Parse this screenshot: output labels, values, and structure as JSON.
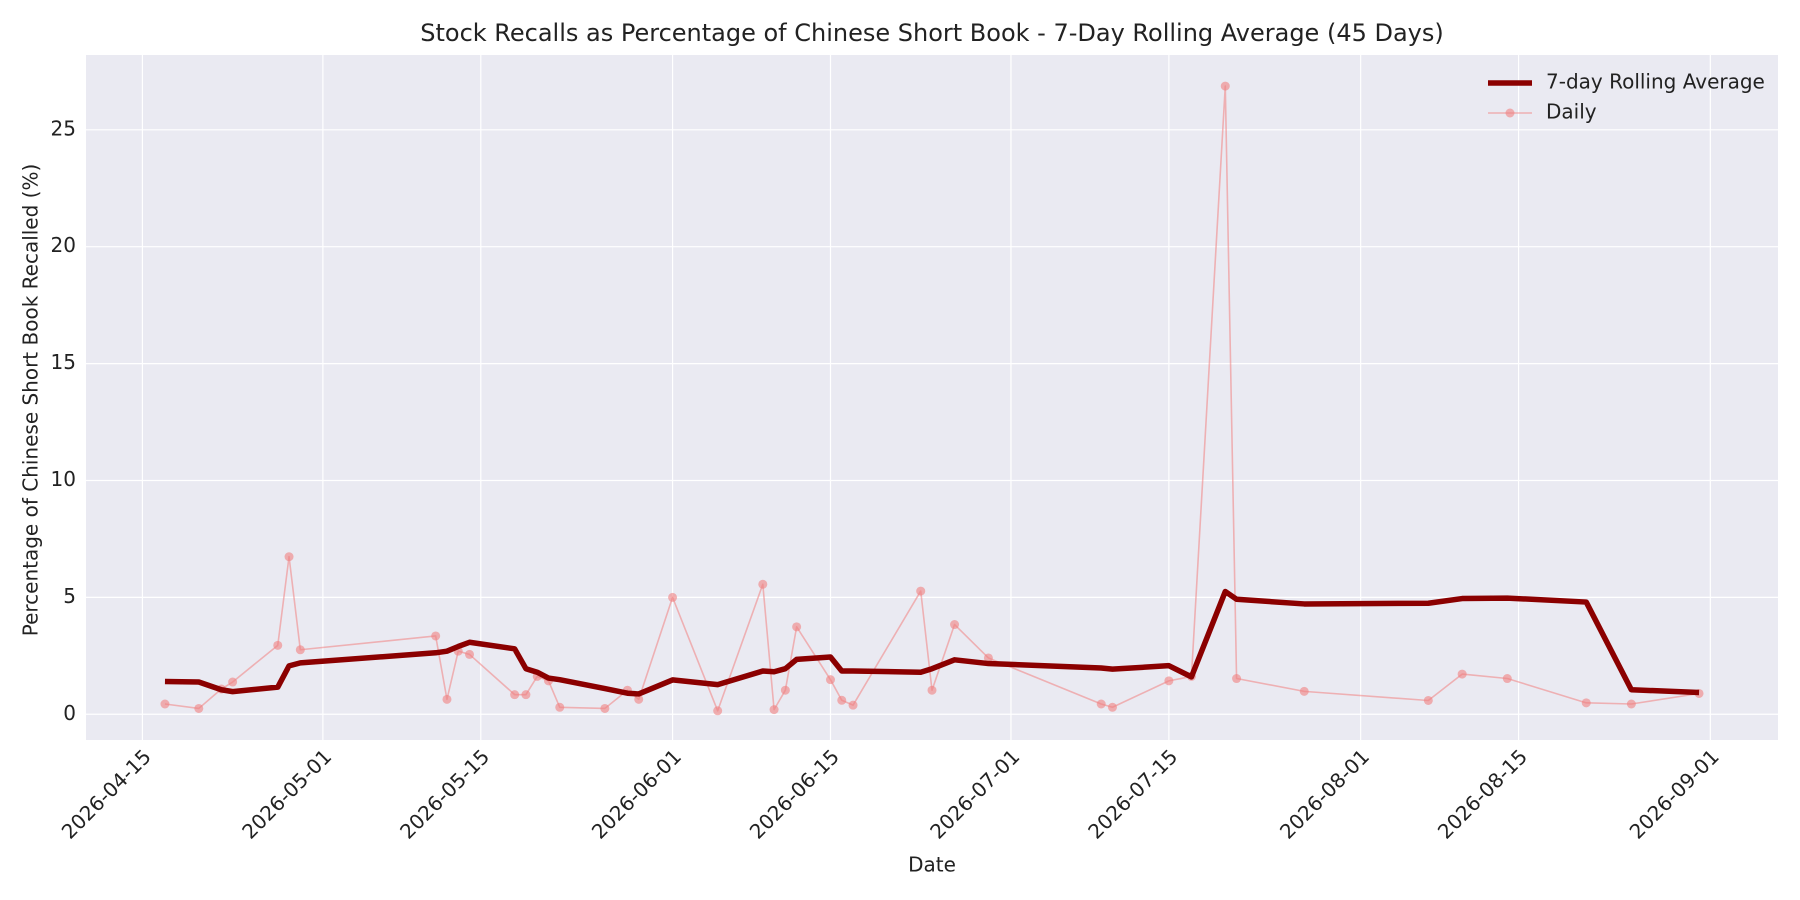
{
  "chart_data": {
    "type": "line",
    "title": "Stock Recalls as Percentage of Chinese Short Book - 7-Day Rolling Average (45 Days)",
    "x_label": "Date",
    "y_label": "Percentage of Chinese Short Book Recalled (%)",
    "x": [
      "2026-04-17",
      "2026-04-20",
      "2026-04-22",
      "2026-04-23",
      "2026-04-27",
      "2026-04-28",
      "2026-04-29",
      "2026-05-11",
      "2026-05-12",
      "2026-05-13",
      "2026-05-14",
      "2026-05-18",
      "2026-05-19",
      "2026-05-20",
      "2026-05-21",
      "2026-05-22",
      "2026-05-26",
      "2026-05-28",
      "2026-05-29",
      "2026-06-01",
      "2026-06-05",
      "2026-06-09",
      "2026-06-10",
      "2026-06-11",
      "2026-06-12",
      "2026-06-15",
      "2026-06-16",
      "2026-06-17",
      "2026-06-23",
      "2026-06-24",
      "2026-06-26",
      "2026-06-29",
      "2026-07-09",
      "2026-07-10",
      "2026-07-15",
      "2026-07-17",
      "2026-07-20",
      "2026-07-21",
      "2026-07-27",
      "2026-08-07",
      "2026-08-10",
      "2026-08-14",
      "2026-08-21",
      "2026-08-25",
      "2026-08-31"
    ],
    "series": [
      {
        "name": "7-day Rolling Average",
        "color": "#8b0000",
        "markers": false,
        "values": [
          1.4,
          1.38,
          1.05,
          0.97,
          1.16,
          2.07,
          2.2,
          2.63,
          2.7,
          2.9,
          3.08,
          2.8,
          1.95,
          1.8,
          1.55,
          1.48,
          1.1,
          0.9,
          0.87,
          1.47,
          1.27,
          1.85,
          1.82,
          1.95,
          2.35,
          2.45,
          1.85,
          1.85,
          1.8,
          1.95,
          2.33,
          2.17,
          1.98,
          1.93,
          2.08,
          1.6,
          5.25,
          4.92,
          4.72,
          4.75,
          4.95,
          4.97,
          4.8,
          1.05,
          0.93
        ]
      },
      {
        "name": "Daily",
        "color": "#f08080",
        "markers": true,
        "values": [
          0.44,
          0.25,
          1.08,
          1.38,
          2.95,
          6.74,
          2.76,
          3.35,
          0.64,
          2.7,
          2.56,
          0.84,
          0.84,
          1.62,
          1.43,
          0.3,
          0.25,
          1.03,
          0.64,
          5.0,
          0.15,
          5.56,
          0.2,
          1.03,
          3.74,
          1.48,
          0.6,
          0.39,
          5.27,
          1.03,
          3.84,
          2.41,
          0.44,
          0.3,
          1.43,
          1.62,
          26.87,
          1.53,
          0.98,
          0.59,
          1.72,
          1.53,
          0.49,
          0.44,
          0.89
        ]
      }
    ],
    "xlim": [
      "2026-04-10",
      "2026-09-07"
    ],
    "xticks": [
      "2026-04-15",
      "2026-05-01",
      "2026-05-15",
      "2026-06-01",
      "2026-06-15",
      "2026-07-01",
      "2026-07-15",
      "2026-08-01",
      "2026-08-15",
      "2026-09-01"
    ],
    "ylim": [
      -1.1,
      28.2
    ],
    "yticks": [
      0,
      5,
      10,
      15,
      20,
      25
    ],
    "grid": true,
    "legend": "upper right"
  }
}
